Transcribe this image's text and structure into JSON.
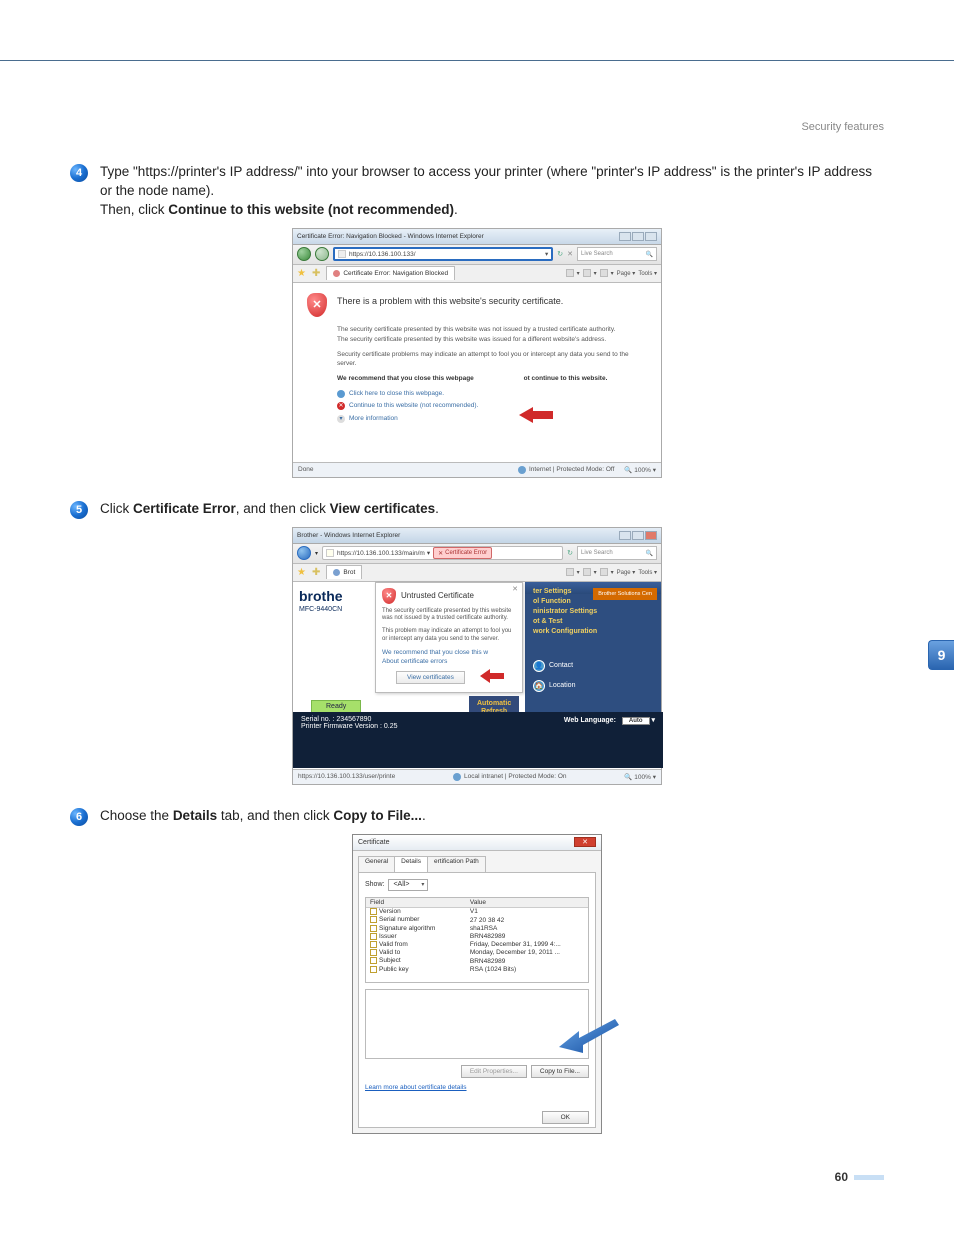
{
  "header": {
    "section_title": "Security features"
  },
  "side_tab": {
    "chapter": "9"
  },
  "footer": {
    "page_number": "60"
  },
  "steps": {
    "s4": {
      "num": "4",
      "text_pre": "Type \"https://printer's IP address/\" into your browser to access your printer (where \"printer's IP address\" is the printer's IP address or the node name).",
      "text_then": "Then, click ",
      "bold": "Continue to this website (not recommended)",
      "period": "."
    },
    "s5": {
      "num": "5",
      "text_pre": "Click ",
      "bold1": "Certificate Error",
      "mid": ", and then click ",
      "bold2": "View certificates",
      "period": "."
    },
    "s6": {
      "num": "6",
      "text_pre": "Choose the ",
      "bold1": "Details",
      "mid": " tab, and then click ",
      "bold2": "Copy to File...",
      "period": "."
    }
  },
  "shot1": {
    "window_title": "Certificate Error: Navigation Blocked - Windows Internet Explorer",
    "address": "https://10.136.100.133/",
    "search_placeholder": "Live Search",
    "tab_label": "Certificate Error: Navigation Blocked",
    "tools": {
      "page": "Page ▾",
      "tools": "Tools ▾"
    },
    "err_heading": "There is a problem with this website's security certificate.",
    "err_l1": "The security certificate presented by this website was not issued by a trusted certificate authority.",
    "err_l2": "The security certificate presented by this website was issued for a different website's address.",
    "err_l3": "Security certificate problems may indicate an attempt to fool you or intercept any data you send to the server.",
    "err_rec_pre": "We recommend that you close this webpage ",
    "err_rec_post": "ot continue to this website.",
    "link_close": "Click here to close this webpage.",
    "link_continue": "Continue to this website (not recommended).",
    "more_info": "More information",
    "status_done": "Done",
    "status_zone": "Internet | Protected Mode: Off",
    "status_zoom": "100%",
    "arrow_color": "#d02a2a"
  },
  "shot2": {
    "window_title": "Brother                - Windows Internet Explorer",
    "address": "https://10.136.100.133/main/m",
    "cert_error_btn": "Certificate Error",
    "search_placeholder": "Live Search",
    "tab_brot": "Brot",
    "tools": {
      "page": "Page ▾",
      "tools": "Tools ▾"
    },
    "logo": "brothe",
    "model": "MFC-9440CN",
    "ready": "Ready",
    "popup_title": "Untrusted Certificate",
    "popup_p1": "The security certificate presented by this website was not issued by a trusted certificate authority.",
    "popup_p2": "This problem may indicate an attempt to fool you or intercept any data you send to the server.",
    "popup_rec": "We recommend that you close this w",
    "popup_about": "About certificate errors",
    "popup_view": "View certificates",
    "auto_refresh_l1": "Automatic",
    "auto_refresh_l2": "Refresh",
    "right_links": [
      "ter Settings",
      "ol Function",
      "ninistrator Settings",
      "ot & Test",
      "work Configuration"
    ],
    "bs_label": "Brother Solutions Cen",
    "contact": "Contact",
    "location": "Location",
    "serial": "Serial no.  : 234567890",
    "fw": "Printer Firmware Version : 0.25",
    "weblang_label": "Web Language:",
    "weblang_value": "Auto",
    "status_url": "https://10.136.100.133/user/printe",
    "status_zone": "Local intranet | Protected Mode: On",
    "status_zoom": "100%",
    "arrow_color": "#d02a2a"
  },
  "shot3": {
    "title": "Certificate",
    "tabs": {
      "general": "General",
      "details": "Details",
      "certpath": "ertification Path"
    },
    "show_label": "Show:",
    "show_value": "<All>",
    "col_field": "Field",
    "col_value": "Value",
    "rows": [
      {
        "f": "Version",
        "v": "V1"
      },
      {
        "f": "Serial number",
        "v": "27 20 38 42"
      },
      {
        "f": "Signature algorithm",
        "v": "sha1RSA"
      },
      {
        "f": "Issuer",
        "v": "BRN482989"
      },
      {
        "f": "Valid from",
        "v": "Friday, December 31, 1999 4:..."
      },
      {
        "f": "Valid to",
        "v": "Monday, December 19, 2011 ..."
      },
      {
        "f": "Subject",
        "v": "BRN482989"
      },
      {
        "f": "Public key",
        "v": "RSA (1024 Bits)"
      }
    ],
    "btn_edit": "Edit Properties...",
    "btn_copy": "Copy to File...",
    "learn_more": "Learn more about certificate details",
    "btn_ok": "OK",
    "arrow_color": "#1a68c8"
  }
}
